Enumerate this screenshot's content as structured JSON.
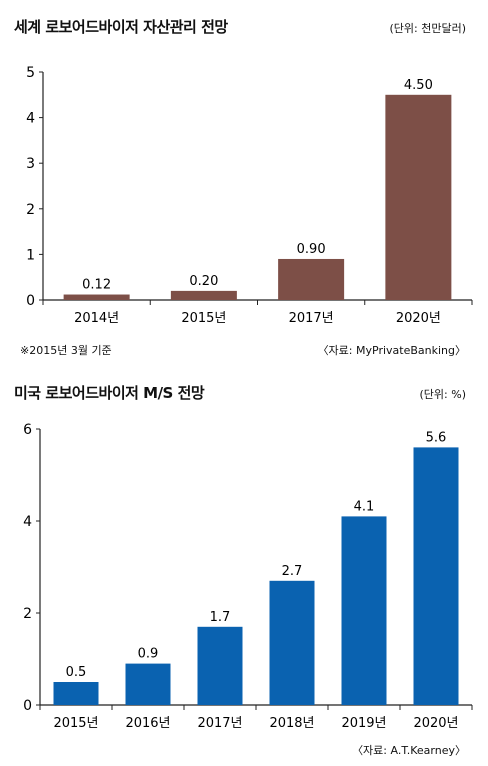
{
  "chart_data": [
    {
      "type": "bar",
      "title": "세계 로보어드바이저 자산관리 전망",
      "unit_label": "(단위: 천만달러)",
      "categories": [
        "2014년",
        "2015년",
        "2017년",
        "2020년"
      ],
      "values": [
        0.12,
        0.2,
        0.9,
        4.5
      ],
      "value_labels": [
        "0.12",
        "0.20",
        "0.90",
        "4.50"
      ],
      "yticks": [
        "0",
        "1",
        "2",
        "3",
        "4",
        "5"
      ],
      "ylim": [
        0,
        5
      ],
      "bar_color": "#7d4f47",
      "grid": false,
      "footnote": "※2015년 3월 기준",
      "source": "〈자료: MyPrivateBanking〉"
    },
    {
      "type": "bar",
      "title": "미국 로보어드바이저 M/S 전망",
      "unit_label": "(단위: %)",
      "categories": [
        "2015년",
        "2016년",
        "2017년",
        "2018년",
        "2019년",
        "2020년"
      ],
      "values": [
        0.5,
        0.9,
        1.7,
        2.7,
        4.1,
        5.6
      ],
      "value_labels": [
        "0.5",
        "0.9",
        "1.7",
        "2.7",
        "4.1",
        "5.6"
      ],
      "yticks": [
        "0",
        "2",
        "4",
        "6"
      ],
      "ylim": [
        0,
        6
      ],
      "bar_color": "#0a62b0",
      "grid": false,
      "source": "〈자료: A.T.Kearney〉"
    }
  ]
}
